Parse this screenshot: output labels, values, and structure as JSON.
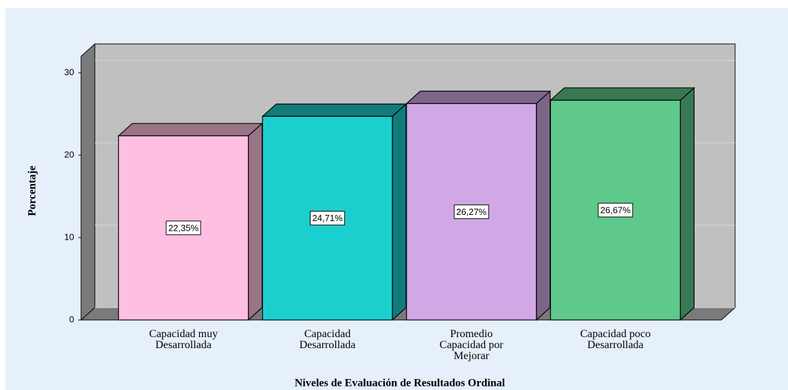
{
  "chart_data": {
    "type": "bar3d",
    "categories": [
      "Capacidad muy\nDesarrollada",
      "Capacidad\nDesarrollada",
      "Promedio\nCapacidad por\nMejorar",
      "Capacidad poco\nDesarrollada"
    ],
    "values": [
      22.35,
      24.71,
      26.27,
      26.67
    ],
    "value_labels": [
      "22,35%",
      "24,71%",
      "26,27%",
      "26,67%"
    ],
    "colors": [
      "#ffbfe0",
      "#1ccfcf",
      "#d0a8e6",
      "#5ec98a"
    ],
    "ylim": [
      0,
      32
    ],
    "yticks": [
      0,
      10,
      20,
      30
    ],
    "grid": true,
    "ylabel": "Porcentaje",
    "xlabel": "Niveles de Evaluación de Resultados Ordinal"
  }
}
